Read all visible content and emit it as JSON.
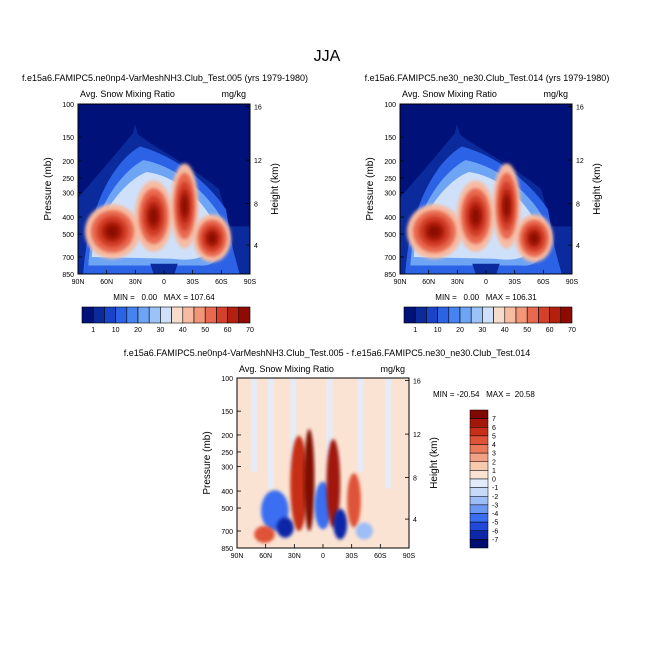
{
  "title": "JJA",
  "colors": {
    "base_cmap": [
      "#00127a",
      "#0b2a9c",
      "#1a44c8",
      "#2c62e6",
      "#4683f0",
      "#6ea4f4",
      "#9cc3f7",
      "#cfe1fa",
      "#f8dccb",
      "#f7bba2",
      "#f2967a",
      "#e8694f",
      "#d3412b",
      "#b4200f",
      "#8e0b04"
    ],
    "diff_cmap": [
      "#000e70",
      "#0c27a8",
      "#2148d8",
      "#3a6ef0",
      "#6b98f4",
      "#9dbdf6",
      "#c7dbf8",
      "#e3ecfb",
      "#fbe3d3",
      "#f7c9ae",
      "#f2a184",
      "#ea7a5c",
      "#df5338",
      "#c62f18",
      "#a2180a",
      "#7f0a04"
    ]
  },
  "chart_data": [
    {
      "type": "heatmap",
      "id": "case1",
      "title": "f.e15a6.FAMIPC5.ne0np4-VarMeshNH3.Club_Test.005 (yrs 1979-1980)",
      "left_label": "Avg. Snow Mixing Ratio",
      "right_label": "mg/kg",
      "ylabel": "Pressure (mb)",
      "y2label": "Height (km)",
      "x_ticks": [
        "90N",
        "60N",
        "30N",
        "0",
        "30S",
        "60S",
        "90S"
      ],
      "y_ticks": [
        "100",
        "150",
        "200",
        "250",
        "300",
        "400",
        "500",
        "700",
        "850"
      ],
      "y2_ticks": [
        "16",
        "12",
        "8",
        "4"
      ],
      "min_max_text": "MIN =   0.00   MAX = 107.64",
      "min": 0.0,
      "max": 107.64,
      "colorbar_labels": [
        "1",
        "10",
        "20",
        "30",
        "40",
        "50",
        "60",
        "70"
      ]
    },
    {
      "type": "heatmap",
      "id": "case2",
      "title": "f.e15a6.FAMIPC5.ne30_ne30.Club_Test.014 (yrs 1979-1980)",
      "left_label": "Avg. Snow Mixing Ratio",
      "right_label": "mg/kg",
      "ylabel": "Pressure (mb)",
      "y2label": "Height (km)",
      "x_ticks": [
        "90N",
        "60N",
        "30N",
        "0",
        "30S",
        "60S",
        "90S"
      ],
      "y_ticks": [
        "100",
        "150",
        "200",
        "250",
        "300",
        "400",
        "500",
        "700",
        "850"
      ],
      "y2_ticks": [
        "16",
        "12",
        "8",
        "4"
      ],
      "min_max_text": "MIN =   0.00   MAX = 106.31",
      "min": 0.0,
      "max": 106.31,
      "colorbar_labels": [
        "1",
        "10",
        "20",
        "30",
        "40",
        "50",
        "60",
        "70"
      ]
    },
    {
      "type": "heatmap",
      "id": "diff",
      "title": "f.e15a6.FAMIPC5.ne0np4-VarMeshNH3.Club_Test.005 - f.e15a6.FAMIPC5.ne30_ne30.Club_Test.014",
      "left_label": "Avg. Snow Mixing Ratio",
      "right_label": "mg/kg",
      "ylabel": "Pressure (mb)",
      "y2label": "Height (km)",
      "x_ticks": [
        "90N",
        "60N",
        "30N",
        "0",
        "30S",
        "60S",
        "90S"
      ],
      "y_ticks": [
        "100",
        "150",
        "200",
        "250",
        "300",
        "400",
        "500",
        "700",
        "850"
      ],
      "y2_ticks": [
        "16",
        "12",
        "8",
        "4"
      ],
      "min_max_text": "MIN = -20.54   MAX =  20.58",
      "min": -20.54,
      "max": 20.58,
      "colorbar_labels": [
        "7",
        "6",
        "5",
        "4",
        "3",
        "2",
        "1",
        "0",
        "-1",
        "-2",
        "-3",
        "-4",
        "-5",
        "-6",
        "-7"
      ]
    }
  ]
}
